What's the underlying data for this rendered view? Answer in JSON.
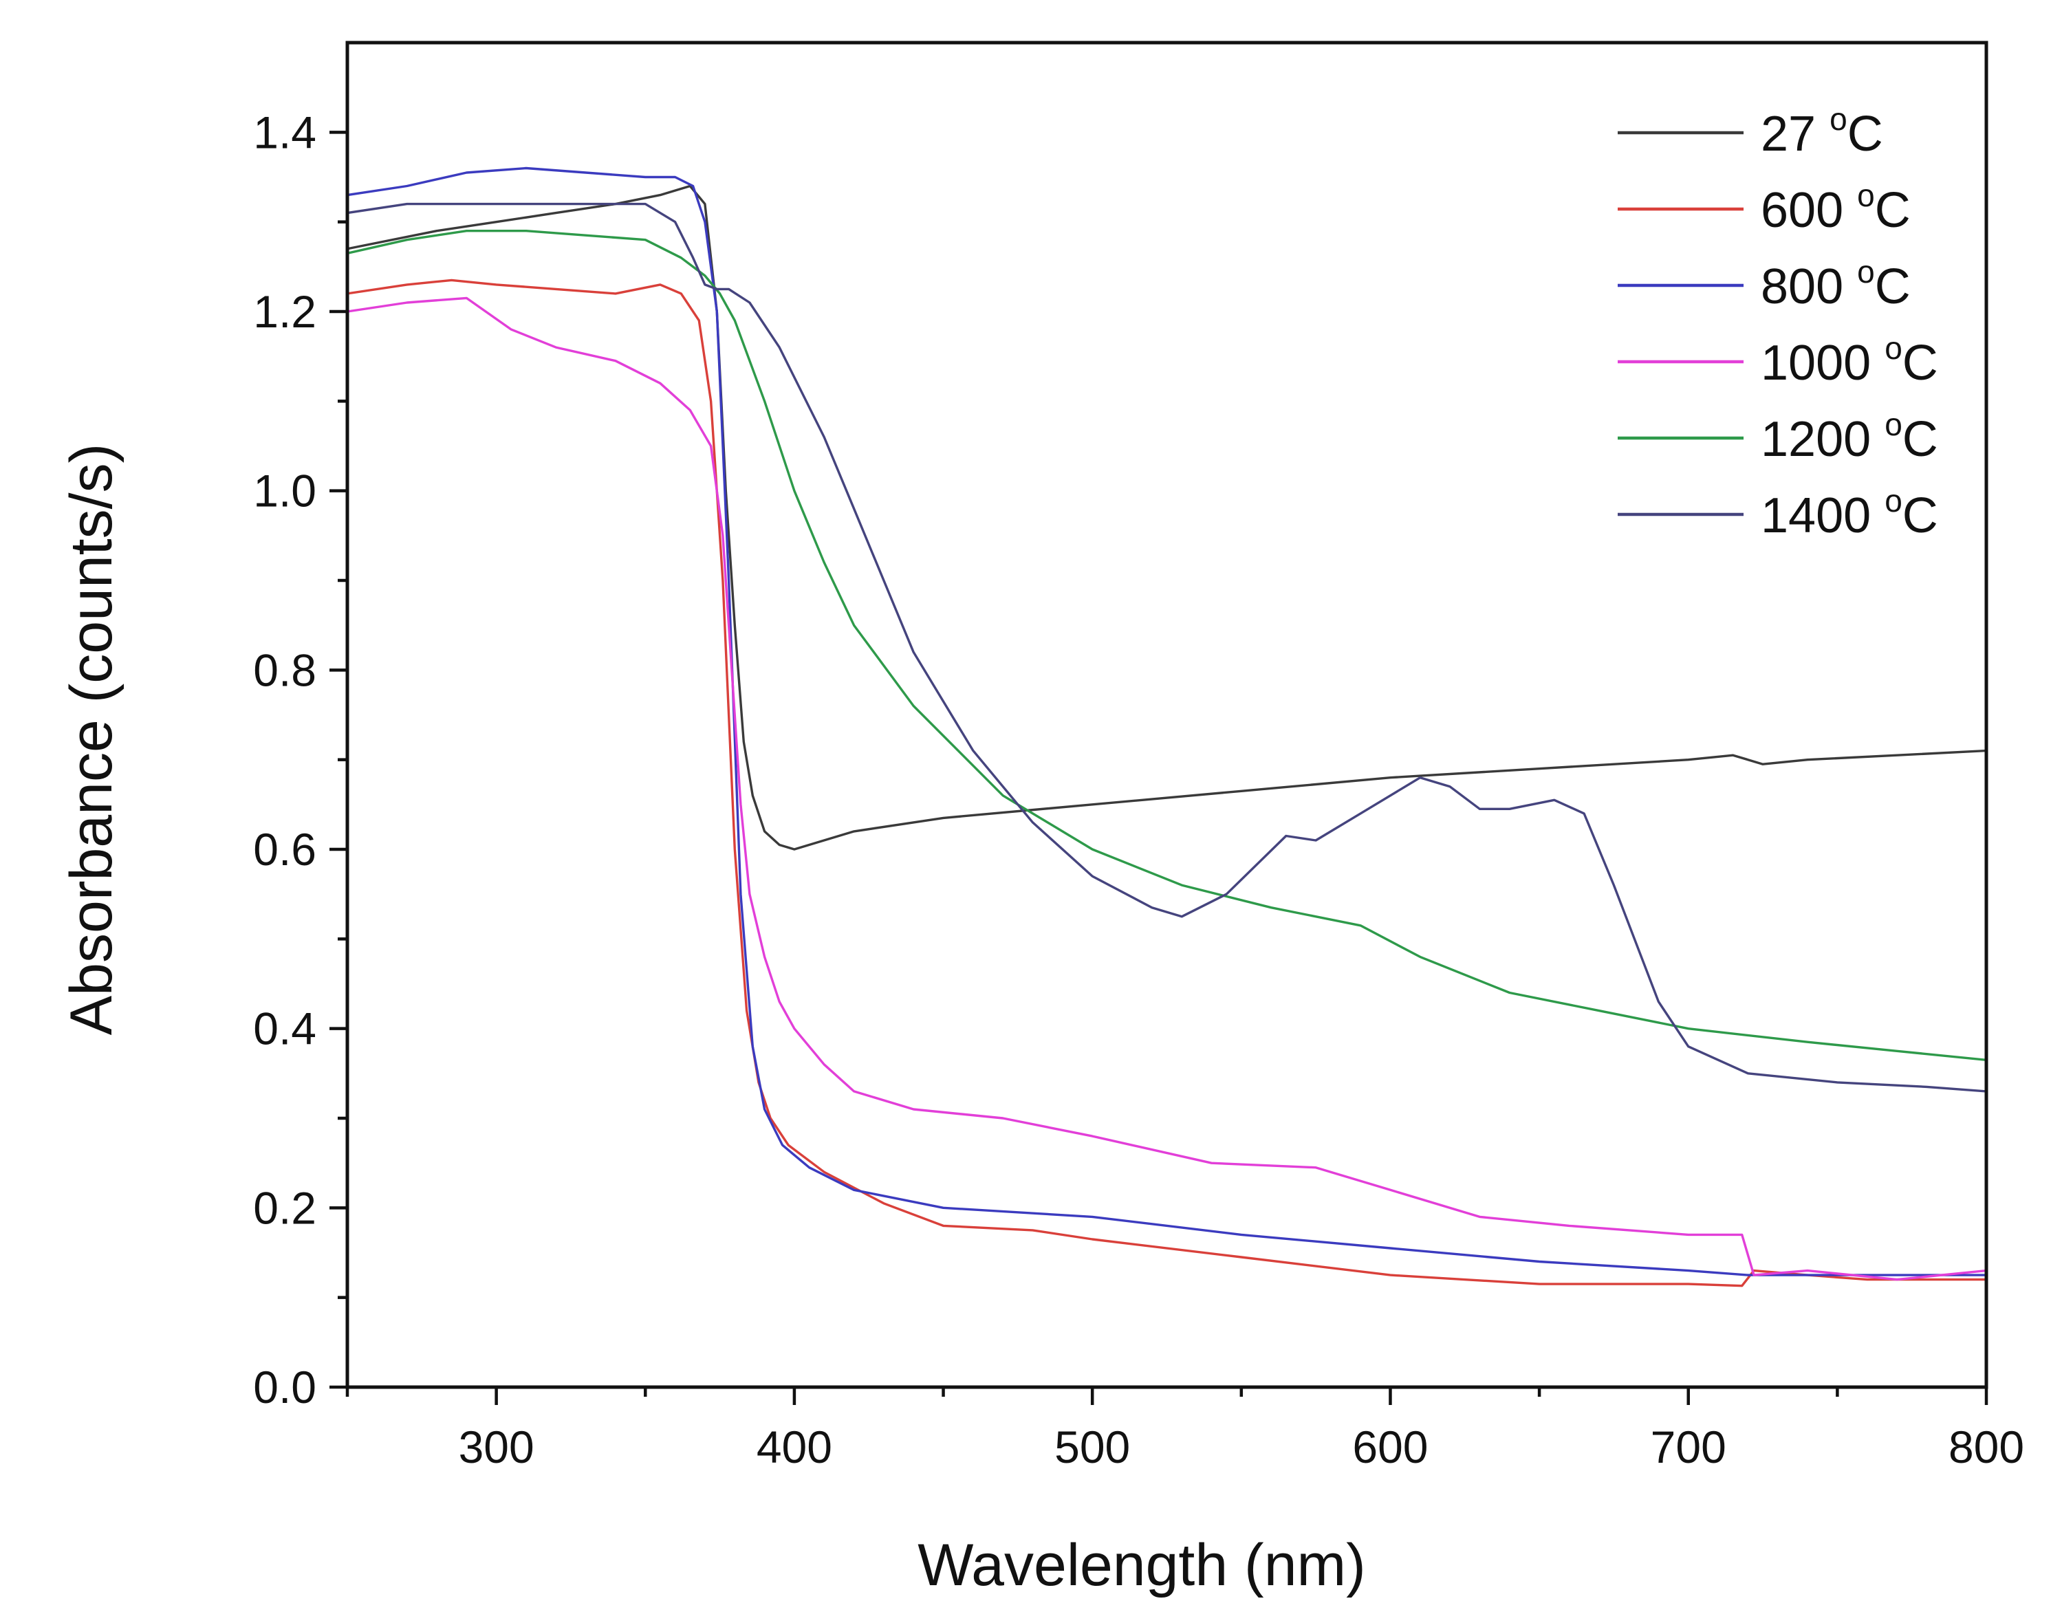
{
  "chart_data": {
    "type": "line",
    "title": "",
    "xlabel": "Wavelength (nm)",
    "ylabel": "Absorbance (counts/s)",
    "xlim": [
      250,
      800
    ],
    "ylim": [
      0.0,
      1.5
    ],
    "x_ticks": [
      300,
      400,
      500,
      600,
      700,
      800
    ],
    "x_tick_labels": [
      "300",
      "400",
      "500",
      "600",
      "700",
      "800"
    ],
    "x_minor_ticks": [
      250,
      350,
      450,
      550,
      650,
      750
    ],
    "y_ticks": [
      0.0,
      0.2,
      0.4,
      0.6,
      0.8,
      1.0,
      1.2,
      1.4
    ],
    "y_tick_labels": [
      "0.0",
      "0.2",
      "0.4",
      "0.6",
      "0.8",
      "1.0",
      "1.2",
      "1.4"
    ],
    "y_minor_ticks": [
      0.1,
      0.3,
      0.5,
      0.7,
      0.9,
      1.1,
      1.3
    ],
    "grid": false,
    "legend_position": "top-right",
    "series": [
      {
        "name": "27 °C",
        "label_main": "27",
        "label_sup": "o",
        "label_unit": "C",
        "color": "#3a3a3a",
        "x": [
          250,
          280,
          300,
          320,
          340,
          355,
          365,
          370,
          374,
          377,
          380,
          383,
          386,
          390,
          395,
          400,
          420,
          450,
          500,
          550,
          600,
          650,
          700,
          715,
          720,
          725,
          740,
          770,
          800
        ],
        "y": [
          1.27,
          1.29,
          1.3,
          1.31,
          1.32,
          1.33,
          1.34,
          1.32,
          1.2,
          1.0,
          0.85,
          0.72,
          0.66,
          0.62,
          0.605,
          0.6,
          0.62,
          0.635,
          0.65,
          0.665,
          0.68,
          0.69,
          0.7,
          0.705,
          0.7,
          0.695,
          0.7,
          0.705,
          0.71
        ]
      },
      {
        "name": "600 °C",
        "label_main": "600",
        "label_sup": "o",
        "label_unit": "C",
        "color": "#d9403a",
        "x": [
          250,
          270,
          285,
          300,
          320,
          340,
          355,
          362,
          368,
          372,
          376,
          380,
          384,
          388,
          392,
          398,
          410,
          430,
          450,
          480,
          500,
          550,
          600,
          650,
          700,
          718,
          722,
          740,
          760,
          800
        ],
        "y": [
          1.22,
          1.23,
          1.235,
          1.23,
          1.225,
          1.22,
          1.23,
          1.22,
          1.19,
          1.1,
          0.9,
          0.6,
          0.42,
          0.34,
          0.3,
          0.27,
          0.24,
          0.205,
          0.18,
          0.175,
          0.165,
          0.145,
          0.125,
          0.115,
          0.115,
          0.113,
          0.13,
          0.125,
          0.12,
          0.12
        ]
      },
      {
        "name": "800 °C",
        "label_main": "800",
        "label_sup": "o",
        "label_unit": "C",
        "color": "#3b3bbf",
        "x": [
          250,
          270,
          290,
          310,
          330,
          350,
          360,
          366,
          370,
          374,
          378,
          382,
          386,
          390,
          396,
          405,
          420,
          450,
          500,
          550,
          600,
          650,
          700,
          720,
          740,
          770,
          800
        ],
        "y": [
          1.33,
          1.34,
          1.355,
          1.36,
          1.355,
          1.35,
          1.35,
          1.34,
          1.3,
          1.2,
          0.9,
          0.55,
          0.38,
          0.31,
          0.27,
          0.245,
          0.22,
          0.2,
          0.19,
          0.17,
          0.155,
          0.14,
          0.13,
          0.125,
          0.125,
          0.125,
          0.125
        ]
      },
      {
        "name": "1000 °C",
        "label_main": "1000",
        "label_sup": "o",
        "label_unit": "C",
        "color": "#e23fd8",
        "x": [
          250,
          270,
          290,
          305,
          320,
          340,
          355,
          365,
          372,
          376,
          379,
          382,
          385,
          390,
          395,
          400,
          410,
          420,
          440,
          470,
          500,
          540,
          575,
          600,
          630,
          660,
          700,
          718,
          722,
          740,
          770,
          800
        ],
        "y": [
          1.2,
          1.21,
          1.215,
          1.18,
          1.16,
          1.145,
          1.12,
          1.09,
          1.05,
          0.95,
          0.8,
          0.65,
          0.55,
          0.48,
          0.43,
          0.4,
          0.36,
          0.33,
          0.31,
          0.3,
          0.28,
          0.25,
          0.245,
          0.22,
          0.19,
          0.18,
          0.17,
          0.17,
          0.125,
          0.13,
          0.12,
          0.13
        ]
      },
      {
        "name": "1200 °C",
        "label_main": "1200",
        "label_sup": "o",
        "label_unit": "C",
        "color": "#2e9a4a",
        "x": [
          250,
          270,
          290,
          310,
          330,
          350,
          362,
          370,
          375,
          380,
          390,
          400,
          410,
          420,
          440,
          470,
          500,
          530,
          560,
          590,
          610,
          640,
          670,
          700,
          740,
          770,
          800
        ],
        "y": [
          1.265,
          1.28,
          1.29,
          1.29,
          1.285,
          1.28,
          1.26,
          1.24,
          1.22,
          1.19,
          1.1,
          1.0,
          0.92,
          0.85,
          0.76,
          0.66,
          0.6,
          0.56,
          0.535,
          0.515,
          0.48,
          0.44,
          0.42,
          0.4,
          0.385,
          0.375,
          0.365
        ]
      },
      {
        "name": "1400 °C",
        "label_main": "1400",
        "label_sup": "o",
        "label_unit": "C",
        "color": "#45447e",
        "x": [
          250,
          270,
          290,
          310,
          330,
          350,
          360,
          366,
          370,
          374,
          378,
          385,
          395,
          410,
          420,
          440,
          460,
          480,
          500,
          520,
          530,
          545,
          565,
          575,
          590,
          610,
          620,
          630,
          640,
          655,
          665,
          675,
          690,
          700,
          720,
          750,
          780,
          800
        ],
        "y": [
          1.31,
          1.32,
          1.32,
          1.32,
          1.32,
          1.32,
          1.3,
          1.26,
          1.23,
          1.225,
          1.225,
          1.21,
          1.16,
          1.06,
          0.98,
          0.82,
          0.71,
          0.63,
          0.57,
          0.535,
          0.525,
          0.55,
          0.615,
          0.61,
          0.64,
          0.68,
          0.67,
          0.645,
          0.645,
          0.655,
          0.64,
          0.56,
          0.43,
          0.38,
          0.35,
          0.34,
          0.335,
          0.33
        ]
      }
    ]
  }
}
